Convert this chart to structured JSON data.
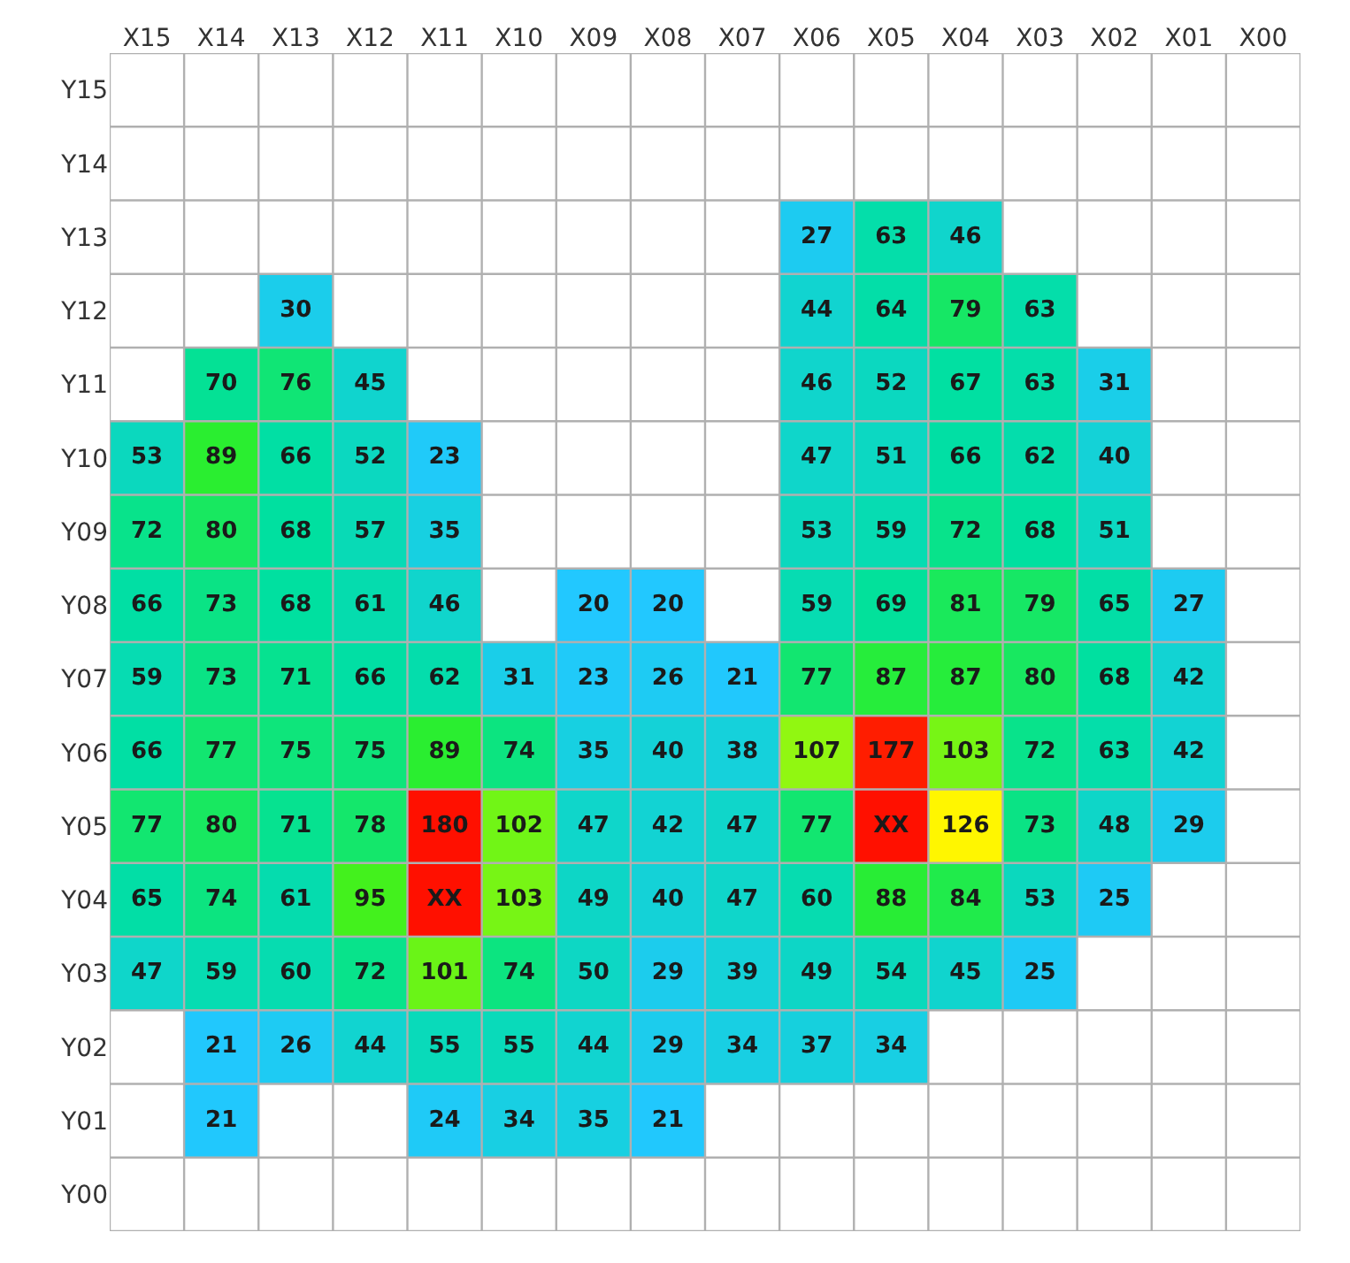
{
  "chart_data": {
    "type": "heatmap",
    "categories": [
      "X15",
      "X14",
      "X13",
      "X12",
      "X11",
      "X10",
      "X09",
      "X08",
      "X07",
      "X06",
      "X05",
      "X04",
      "X03",
      "X02",
      "X01",
      "X00"
    ],
    "y_categories": [
      "Y15",
      "Y14",
      "Y13",
      "Y12",
      "Y11",
      "Y10",
      "Y09",
      "Y08",
      "Y07",
      "Y06",
      "Y05",
      "Y04",
      "Y03",
      "Y02",
      "Y01",
      "Y00"
    ],
    "cells": [
      [
        null,
        null,
        null,
        null,
        null,
        null,
        null,
        null,
        null,
        null,
        null,
        null,
        null,
        null,
        null,
        null
      ],
      [
        null,
        null,
        null,
        null,
        null,
        null,
        null,
        null,
        null,
        null,
        null,
        null,
        null,
        null,
        null,
        null
      ],
      [
        null,
        null,
        null,
        null,
        null,
        null,
        null,
        null,
        null,
        27,
        63,
        46,
        null,
        null,
        null,
        null
      ],
      [
        null,
        null,
        30,
        null,
        null,
        null,
        null,
        null,
        null,
        44,
        64,
        79,
        63,
        null,
        null,
        null
      ],
      [
        null,
        70,
        76,
        45,
        null,
        null,
        null,
        null,
        null,
        46,
        52,
        67,
        63,
        31,
        null,
        null
      ],
      [
        53,
        89,
        66,
        52,
        23,
        null,
        null,
        null,
        null,
        47,
        51,
        66,
        62,
        40,
        null,
        null
      ],
      [
        72,
        80,
        68,
        57,
        35,
        null,
        null,
        null,
        null,
        53,
        59,
        72,
        68,
        51,
        null,
        null
      ],
      [
        66,
        73,
        68,
        61,
        46,
        null,
        20,
        20,
        null,
        59,
        69,
        81,
        79,
        65,
        27,
        null
      ],
      [
        59,
        73,
        71,
        66,
        62,
        31,
        23,
        26,
        21,
        77,
        87,
        87,
        80,
        68,
        42,
        null
      ],
      [
        66,
        77,
        75,
        75,
        89,
        74,
        35,
        40,
        38,
        107,
        177,
        103,
        72,
        63,
        42,
        null
      ],
      [
        77,
        80,
        71,
        78,
        180,
        102,
        47,
        42,
        47,
        77,
        null,
        126,
        73,
        48,
        29,
        null
      ],
      [
        65,
        74,
        61,
        95,
        null,
        103,
        49,
        40,
        47,
        60,
        88,
        84,
        53,
        25,
        null,
        null
      ],
      [
        47,
        59,
        60,
        72,
        101,
        74,
        50,
        29,
        39,
        49,
        54,
        45,
        25,
        null,
        null,
        null
      ],
      [
        null,
        21,
        26,
        44,
        55,
        55,
        44,
        29,
        34,
        37,
        34,
        null,
        null,
        null,
        null,
        null
      ],
      [
        null,
        21,
        null,
        null,
        24,
        34,
        35,
        21,
        null,
        null,
        null,
        null,
        null,
        null,
        null,
        null
      ],
      [
        null,
        null,
        null,
        null,
        null,
        null,
        null,
        null,
        null,
        null,
        null,
        null,
        null,
        null,
        null,
        null
      ]
    ],
    "cell_labels": [
      [
        null,
        null,
        null,
        null,
        null,
        null,
        null,
        null,
        null,
        null,
        null,
        null,
        null,
        null,
        null,
        null
      ],
      [
        null,
        null,
        null,
        null,
        null,
        null,
        null,
        null,
        null,
        null,
        null,
        null,
        null,
        null,
        null,
        null
      ],
      [
        null,
        null,
        null,
        null,
        null,
        null,
        null,
        null,
        null,
        "27",
        "63",
        "46",
        null,
        null,
        null,
        null
      ],
      [
        null,
        null,
        "30",
        null,
        null,
        null,
        null,
        null,
        null,
        "44",
        "64",
        "79",
        "63",
        null,
        null,
        null
      ],
      [
        null,
        "70",
        "76",
        "45",
        null,
        null,
        null,
        null,
        null,
        "46",
        "52",
        "67",
        "63",
        "31",
        null,
        null
      ],
      [
        "53",
        "89",
        "66",
        "52",
        "23",
        null,
        null,
        null,
        null,
        "47",
        "51",
        "66",
        "62",
        "40",
        null,
        null
      ],
      [
        "72",
        "80",
        "68",
        "57",
        "35",
        null,
        null,
        null,
        null,
        "53",
        "59",
        "72",
        "68",
        "51",
        null,
        null
      ],
      [
        "66",
        "73",
        "68",
        "61",
        "46",
        null,
        "20",
        "20",
        null,
        "59",
        "69",
        "81",
        "79",
        "65",
        "27",
        null
      ],
      [
        "59",
        "73",
        "71",
        "66",
        "62",
        "31",
        "23",
        "26",
        "21",
        "77",
        "87",
        "87",
        "80",
        "68",
        "42",
        null
      ],
      [
        "66",
        "77",
        "75",
        "75",
        "89",
        "74",
        "35",
        "40",
        "38",
        "107",
        "177",
        "103",
        "72",
        "63",
        "42",
        null
      ],
      [
        "77",
        "80",
        "71",
        "78",
        "180",
        "102",
        "47",
        "42",
        "47",
        "77",
        "XX",
        "126",
        "73",
        "48",
        "29",
        null
      ],
      [
        "65",
        "74",
        "61",
        "95",
        "XX",
        "103",
        "49",
        "40",
        "47",
        "60",
        "88",
        "84",
        "53",
        "25",
        null,
        null
      ],
      [
        "47",
        "59",
        "60",
        "72",
        "101",
        "74",
        "50",
        "29",
        "39",
        "49",
        "54",
        "45",
        "25",
        null,
        null,
        null
      ],
      [
        null,
        "21",
        "26",
        "44",
        "55",
        "55",
        "44",
        "29",
        "34",
        "37",
        "34",
        null,
        null,
        null,
        null,
        null
      ],
      [
        null,
        "21",
        null,
        null,
        "24",
        "34",
        "35",
        "21",
        null,
        null,
        null,
        null,
        null,
        null,
        null,
        null
      ],
      [
        null,
        null,
        null,
        null,
        null,
        null,
        null,
        null,
        null,
        null,
        null,
        null,
        null,
        null,
        null,
        null
      ]
    ],
    "grid": true
  }
}
